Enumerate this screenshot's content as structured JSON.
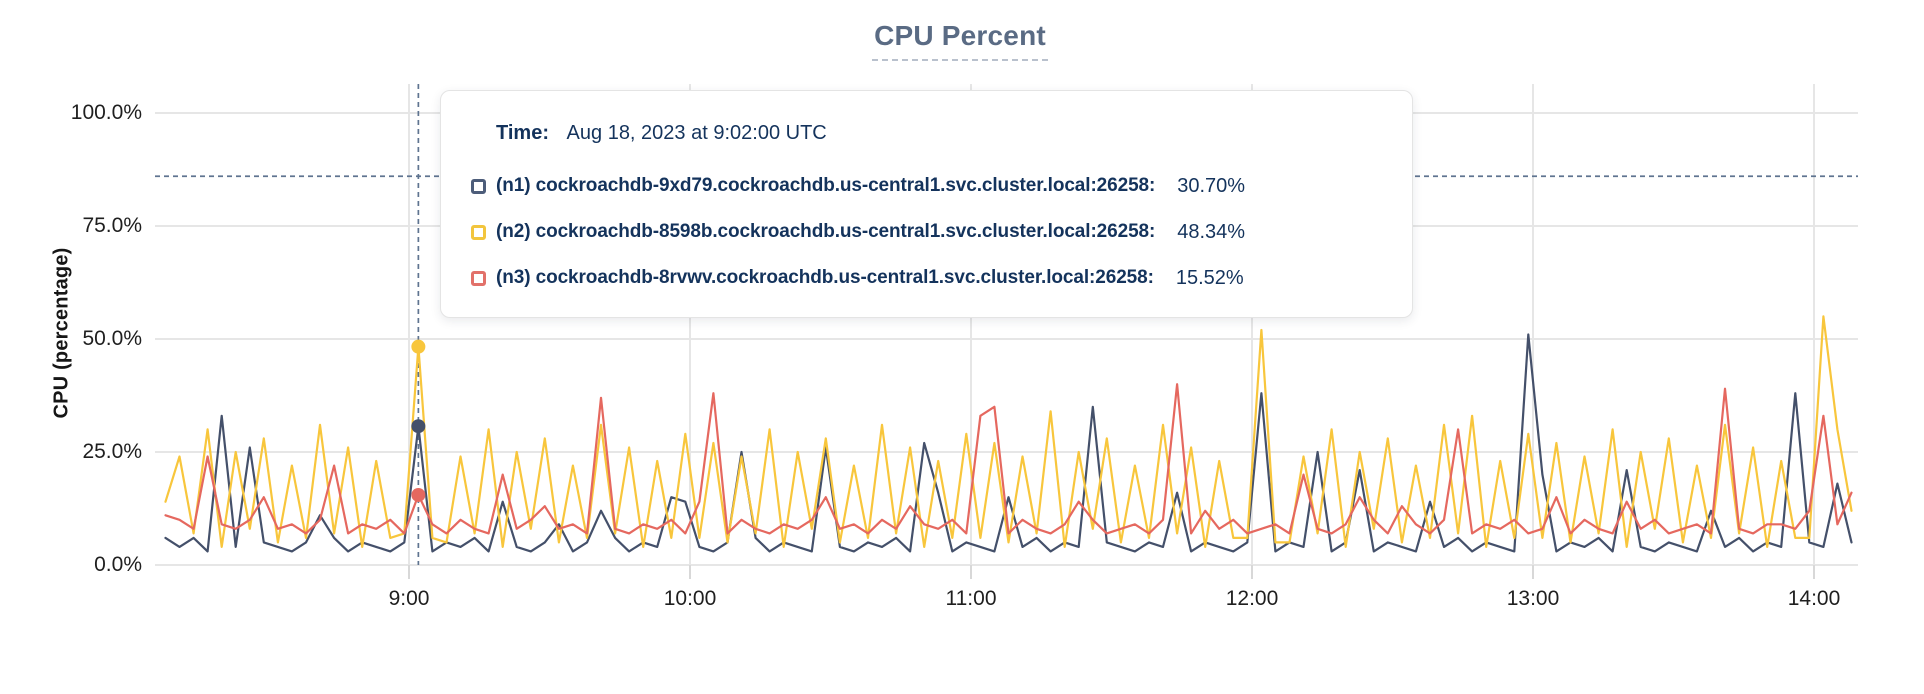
{
  "title": "CPU Percent",
  "y_axis": {
    "label": "CPU (percentage)"
  },
  "tooltip": {
    "time_label": "Time:",
    "time_value": "Aug 18, 2023 at 9:02:00 UTC",
    "rows": [
      {
        "label": "(n1) cockroachdb-9xd79.cockroachdb.us-central1.svc.cluster.local:26258:",
        "value": "30.70%",
        "color": "#4d5d7a"
      },
      {
        "label": "(n2) cockroachdb-8598b.cockroachdb.us-central1.svc.cluster.local:26258:",
        "value": "48.34%",
        "color": "#f2c53d"
      },
      {
        "label": "(n3) cockroachdb-8rvwv.cockroachdb.us-central1.svc.cluster.local:26258:",
        "value": "15.52%",
        "color": "#e2716a"
      }
    ]
  },
  "colors": {
    "grid": "#e6e6e6",
    "tick_mark": "#d8d8d8",
    "crosshair": "#5f7490",
    "axis_text": "#1f1f1f",
    "title": "#5a6b84",
    "tooltip_text": "#14335c"
  },
  "chart_data": {
    "type": "line",
    "title": "CPU Percent",
    "ylabel": "CPU (percentage)",
    "ylim": [
      0,
      100
    ],
    "grid": true,
    "y_tick_percents": [
      100,
      75,
      50,
      25,
      0
    ],
    "y_tick_labels": [
      "100.0%",
      "75.0%",
      "50.0%",
      "25.0%",
      "0.0%"
    ],
    "x_ticks_minutes": [
      540,
      600,
      660,
      720,
      780,
      840
    ],
    "x_tick_labels": [
      "9:00",
      "10:00",
      "11:00",
      "12:00",
      "13:00",
      "14:00"
    ],
    "x_start_minutes": 488,
    "x_step_minutes": 3,
    "hover": {
      "index": 18,
      "time_minutes": 542,
      "time_display": "Aug 18, 2023 at 9:02:00 UTC",
      "crosshair_y_percent": 86,
      "values": {
        "n1": 30.7,
        "n2": 48.34,
        "n3": 15.52
      }
    },
    "series": [
      {
        "name": "(n1) cockroachdb-9xd79.cockroachdb.us-central1.svc.cluster.local:26258",
        "color": "#44506a",
        "values": [
          6,
          4,
          6,
          3,
          33,
          4,
          26,
          5,
          4,
          3,
          5,
          11,
          6,
          3,
          5,
          4,
          3,
          5,
          30.7,
          3,
          5,
          4,
          6,
          3,
          14,
          4,
          3,
          5,
          9,
          3,
          5,
          12,
          6,
          3,
          5,
          4,
          15,
          14,
          4,
          3,
          5,
          25,
          6,
          3,
          5,
          4,
          3,
          26,
          4,
          3,
          5,
          4,
          6,
          3,
          27,
          16,
          3,
          5,
          4,
          3,
          15,
          4,
          6,
          3,
          5,
          4,
          35,
          5,
          4,
          3,
          5,
          4,
          16,
          3,
          5,
          4,
          3,
          5,
          38,
          3,
          5,
          4,
          25,
          3,
          5,
          21,
          3,
          5,
          4,
          3,
          14,
          4,
          6,
          3,
          5,
          4,
          3,
          51,
          20,
          3,
          5,
          4,
          6,
          3,
          21,
          4,
          3,
          5,
          4,
          3,
          12,
          4,
          6,
          3,
          5,
          4,
          38,
          5,
          4,
          18,
          5
        ]
      },
      {
        "name": "(n2) cockroachdb-8598b.cockroachdb.us-central1.svc.cluster.local:26258",
        "color": "#f8c63c",
        "values": [
          14,
          24,
          7,
          30,
          4,
          25,
          8,
          28,
          5,
          22,
          6,
          31,
          7,
          26,
          4,
          23,
          6,
          7,
          48.3,
          6,
          5,
          24,
          7,
          30,
          4,
          25,
          8,
          28,
          5,
          22,
          6,
          31,
          7,
          26,
          4,
          23,
          6,
          29,
          6,
          27,
          5,
          24,
          7,
          30,
          4,
          25,
          8,
          28,
          5,
          22,
          6,
          31,
          7,
          26,
          4,
          23,
          6,
          29,
          6,
          27,
          5,
          24,
          7,
          34,
          4,
          25,
          8,
          28,
          5,
          22,
          6,
          31,
          7,
          26,
          4,
          23,
          6,
          6,
          52,
          5,
          5,
          24,
          7,
          30,
          4,
          25,
          8,
          28,
          5,
          22,
          6,
          31,
          7,
          33,
          4,
          23,
          6,
          29,
          6,
          27,
          5,
          24,
          7,
          30,
          4,
          25,
          8,
          28,
          5,
          22,
          6,
          31,
          7,
          26,
          4,
          23,
          6,
          6,
          55,
          30,
          12
        ]
      },
      {
        "name": "(n3) cockroachdb-8rvwv.cockroachdb.us-central1.svc.cluster.local:26258",
        "color": "#e5685f",
        "values": [
          11,
          10,
          8,
          24,
          9,
          8,
          10,
          15,
          8,
          9,
          7,
          10,
          22,
          7,
          9,
          8,
          10,
          7,
          15.5,
          9,
          7,
          10,
          8,
          7,
          20,
          8,
          10,
          13,
          8,
          9,
          7,
          37,
          8,
          7,
          9,
          8,
          10,
          7,
          14,
          38,
          7,
          10,
          8,
          7,
          9,
          8,
          10,
          15,
          8,
          9,
          7,
          10,
          8,
          13,
          9,
          8,
          10,
          7,
          33,
          35,
          7,
          10,
          8,
          7,
          9,
          14,
          10,
          7,
          8,
          9,
          7,
          10,
          40,
          7,
          12,
          8,
          10,
          7,
          8,
          9,
          7,
          20,
          8,
          7,
          9,
          15,
          10,
          7,
          13,
          9,
          7,
          10,
          30,
          7,
          9,
          8,
          10,
          7,
          8,
          15,
          7,
          10,
          8,
          7,
          14,
          8,
          10,
          7,
          8,
          9,
          7,
          39,
          8,
          7,
          9,
          9,
          8,
          12,
          33,
          9,
          16
        ]
      }
    ]
  }
}
